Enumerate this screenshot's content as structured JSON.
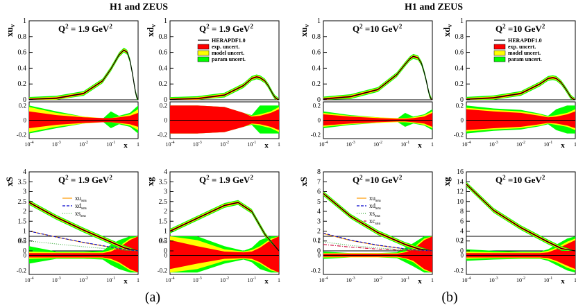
{
  "figure": {
    "group_titles": [
      "H1 and ZEUS",
      "H1 and ZEUS"
    ],
    "panel_labels": [
      "(a)",
      "(b)"
    ]
  },
  "colors": {
    "central": "#000000",
    "exp": "#ff0000",
    "model": "#ffff00",
    "param": "#00ff00",
    "xu_sea": "#ff9900",
    "xd_sea": "#0000cc",
    "xs_sea": "#33aa33",
    "xc_sea": "#cc0033"
  },
  "legend_main": {
    "title": "HERAPDF1.0",
    "items": [
      "exp. uncert.",
      "model uncert.",
      "param uncert."
    ]
  },
  "legend_sea_a": [
    "xu",
    "xd",
    "xs"
  ],
  "legend_sea_b": [
    "xu",
    "xd",
    "xs",
    "xc"
  ],
  "legend_sea_suffix": "sea",
  "ratio_axis": {
    "ylim": [
      -0.25,
      0.25
    ],
    "ticks": [
      "0.2",
      "0",
      "-0.2"
    ]
  },
  "x_axis": {
    "label": "x",
    "range_log10": [
      -4,
      0
    ],
    "tick_labels": [
      "10",
      "10",
      "10",
      "10",
      "1"
    ],
    "tick_exponents": [
      "-4",
      "-3",
      "-2",
      "-1",
      ""
    ]
  },
  "chart_data": [
    {
      "type": "area",
      "title": "Q2 = 1.9 GeV2",
      "q2_label": "Q",
      "q2_sup": "2",
      "q2_value": "= 1.9 GeV",
      "q2_unit_sup": "2",
      "ylabel": "xu",
      "ylabel_sub": "v",
      "ylim": [
        0,
        1
      ],
      "y_ticks": [
        "0",
        "0.2",
        "0.4",
        "0.6",
        "0.8",
        "1"
      ],
      "series": [
        {
          "name": "xu_v",
          "x": [
            0.0001,
            0.001,
            0.01,
            0.05,
            0.1,
            0.2,
            0.3,
            0.4,
            0.5,
            0.6,
            0.7,
            0.8,
            0.9,
            1.0
          ],
          "y": [
            0.005,
            0.02,
            0.08,
            0.24,
            0.39,
            0.57,
            0.63,
            0.6,
            0.5,
            0.36,
            0.22,
            0.1,
            0.03,
            0.0
          ]
        }
      ],
      "ratio_bands": {
        "x_log10": [
          -4,
          -3,
          -2,
          -1.3,
          -1,
          -0.7,
          -0.3,
          0
        ],
        "exp": [
          0.12,
          0.07,
          0.04,
          0.03,
          0.03,
          0.04,
          0.06,
          0.1
        ],
        "model": [
          0.18,
          0.1,
          0.05,
          0.03,
          0.03,
          0.05,
          0.08,
          0.15
        ],
        "param": [
          0.2,
          0.12,
          0.05,
          0.02,
          0.12,
          0.06,
          0.1,
          0.2
        ]
      }
    },
    {
      "type": "area",
      "title": "Q2 = 1.9 GeV2",
      "q2_label": "Q",
      "q2_sup": "2",
      "q2_value": "= 1.9 GeV",
      "q2_unit_sup": "2",
      "ylabel": "xd",
      "ylabel_sub": "v",
      "ylim": [
        0,
        1
      ],
      "y_ticks": [
        "0",
        "0.2",
        "0.4",
        "0.6",
        "0.8",
        "1"
      ],
      "series": [
        {
          "name": "xd_v",
          "x": [
            0.0001,
            0.001,
            0.01,
            0.05,
            0.1,
            0.15,
            0.2,
            0.3,
            0.4,
            0.5,
            0.6,
            0.7,
            0.8,
            0.9,
            1.0
          ],
          "y": [
            0.004,
            0.015,
            0.06,
            0.18,
            0.27,
            0.29,
            0.28,
            0.24,
            0.18,
            0.12,
            0.07,
            0.035,
            0.015,
            0.004,
            0.0
          ]
        }
      ],
      "ratio_bands": {
        "x_log10": [
          -4,
          -3,
          -2,
          -1.3,
          -1,
          -0.7,
          -0.3,
          0
        ],
        "exp": [
          0.2,
          0.2,
          0.18,
          0.1,
          0.05,
          0.06,
          0.1,
          0.15
        ],
        "model": [
          0.2,
          0.2,
          0.18,
          0.1,
          0.06,
          0.08,
          0.12,
          0.18
        ],
        "param": [
          0.2,
          0.2,
          0.18,
          0.1,
          0.07,
          0.2,
          0.2,
          0.2
        ]
      }
    },
    {
      "type": "area",
      "title": "Q2 = 10 GeV2",
      "q2_label": "Q",
      "q2_sup": "2",
      "q2_value": "=10 GeV",
      "q2_unit_sup": "2",
      "ylabel": "xu",
      "ylabel_sub": "v",
      "ylim": [
        0,
        1
      ],
      "y_ticks": [
        "0",
        "0.2",
        "0.4",
        "0.6",
        "0.8",
        "1"
      ],
      "series": [
        {
          "name": "xu_v",
          "x": [
            0.0001,
            0.001,
            0.01,
            0.05,
            0.1,
            0.15,
            0.2,
            0.3,
            0.4,
            0.5,
            0.6,
            0.7,
            0.8,
            0.9,
            1.0
          ],
          "y": [
            0.01,
            0.04,
            0.13,
            0.32,
            0.45,
            0.52,
            0.55,
            0.53,
            0.46,
            0.35,
            0.24,
            0.13,
            0.05,
            0.01,
            0.0
          ]
        }
      ],
      "ratio_bands": {
        "x_log10": [
          -4,
          -3,
          -2,
          -1.3,
          -1,
          -0.7,
          -0.3,
          0
        ],
        "exp": [
          0.08,
          0.05,
          0.03,
          0.02,
          0.02,
          0.03,
          0.05,
          0.1
        ],
        "model": [
          0.1,
          0.06,
          0.04,
          0.03,
          0.03,
          0.04,
          0.07,
          0.12
        ],
        "param": [
          0.12,
          0.07,
          0.04,
          0.02,
          0.1,
          0.05,
          0.08,
          0.15
        ]
      }
    },
    {
      "type": "area",
      "title": "Q2 = 10 GeV2",
      "q2_label": "Q",
      "q2_sup": "2",
      "q2_value": "=10 GeV",
      "q2_unit_sup": "2",
      "ylabel": "xd",
      "ylabel_sub": "v",
      "ylim": [
        0,
        1
      ],
      "y_ticks": [
        "0",
        "0.2",
        "0.4",
        "0.6",
        "0.8",
        "1"
      ],
      "series": [
        {
          "name": "xd_v",
          "x": [
            0.0001,
            0.001,
            0.01,
            0.05,
            0.1,
            0.15,
            0.2,
            0.3,
            0.4,
            0.5,
            0.6,
            0.7,
            0.8,
            0.9,
            1.0
          ],
          "y": [
            0.006,
            0.025,
            0.08,
            0.2,
            0.27,
            0.28,
            0.27,
            0.22,
            0.16,
            0.11,
            0.065,
            0.032,
            0.012,
            0.003,
            0.0
          ]
        }
      ],
      "ratio_bands": {
        "x_log10": [
          -4,
          -3,
          -2,
          -1.3,
          -1,
          -0.7,
          -0.3,
          0
        ],
        "exp": [
          0.15,
          0.12,
          0.1,
          0.06,
          0.04,
          0.05,
          0.08,
          0.12
        ],
        "model": [
          0.17,
          0.14,
          0.12,
          0.08,
          0.05,
          0.07,
          0.1,
          0.15
        ],
        "param": [
          0.2,
          0.16,
          0.14,
          0.09,
          0.06,
          0.15,
          0.2,
          0.2
        ]
      }
    },
    {
      "type": "line",
      "title": "Q2 = 1.9 GeV2",
      "q2_label": "Q",
      "q2_sup": "2",
      "q2_value": "= 1.9 GeV",
      "q2_unit_sup": "2",
      "ylabel": "xS",
      "ylabel_sub": "",
      "ylim": [
        0,
        4
      ],
      "y_ticks": [
        "0",
        "0.5",
        "1",
        "1.5",
        "2",
        "2.5",
        "3",
        "3.5",
        "4"
      ],
      "series": [
        {
          "name": "xS",
          "x_log10": [
            -4,
            -3,
            -2,
            -1,
            -0.5,
            0
          ],
          "y": [
            2.45,
            1.7,
            1.05,
            0.45,
            0.15,
            0.0
          ]
        },
        {
          "name": "xu_sea",
          "x_log10": [
            -4,
            -3,
            -2,
            -1,
            -0.5,
            0
          ],
          "y": [
            1.0,
            0.7,
            0.42,
            0.18,
            0.06,
            0.0
          ]
        },
        {
          "name": "xd_sea",
          "x_log10": [
            -4,
            -3,
            -2,
            -1,
            -0.5,
            0
          ],
          "y": [
            1.0,
            0.7,
            0.43,
            0.19,
            0.07,
            0.0
          ]
        },
        {
          "name": "xs_sea",
          "x_log10": [
            -4,
            -3,
            -2,
            -1,
            -0.5,
            0
          ],
          "y": [
            0.5,
            0.35,
            0.21,
            0.09,
            0.03,
            0.0
          ]
        }
      ],
      "ratio_bands": {
        "x_log10": [
          -4,
          -3,
          -2,
          -1.3,
          -1,
          -0.7,
          -0.3,
          0
        ],
        "exp": [
          0.03,
          0.03,
          0.03,
          0.03,
          0.05,
          0.1,
          0.2,
          0.25
        ],
        "model": [
          0.05,
          0.04,
          0.04,
          0.04,
          0.07,
          0.12,
          0.22,
          0.25
        ],
        "param": [
          0.12,
          0.05,
          0.05,
          0.06,
          0.14,
          0.2,
          0.25,
          0.25
        ]
      }
    },
    {
      "type": "area",
      "title": "Q2 = 1.9 GeV2",
      "q2_label": "Q",
      "q2_sup": "2",
      "q2_value": "= 1.9 GeV",
      "q2_unit_sup": "2",
      "ylabel": "xg",
      "ylabel_sub": "",
      "ylim": [
        0,
        4
      ],
      "y_ticks": [
        "0",
        "0.5",
        "1",
        "1.5",
        "2",
        "2.5",
        "3",
        "3.5",
        "4"
      ],
      "series": [
        {
          "name": "xg",
          "x_log10": [
            -4,
            -3,
            -2,
            -1.5,
            -1,
            -0.5,
            0
          ],
          "y": [
            1.0,
            1.65,
            2.3,
            2.45,
            2.0,
            0.8,
            0.0
          ]
        }
      ],
      "ratio_bands": {
        "x_log10": [
          -4,
          -3,
          -2,
          -1.3,
          -1,
          -0.7,
          -0.3,
          0
        ],
        "exp": [
          0.2,
          0.12,
          0.05,
          0.04,
          0.05,
          0.1,
          0.2,
          0.25
        ],
        "model": [
          0.25,
          0.2,
          0.08,
          0.05,
          0.07,
          0.12,
          0.22,
          0.25
        ],
        "param": [
          0.25,
          0.25,
          0.12,
          0.06,
          0.1,
          0.2,
          0.25,
          0.25
        ]
      }
    },
    {
      "type": "line",
      "title": "Q2 = 10 GeV2",
      "q2_label": "Q",
      "q2_sup": "2",
      "q2_value": "=10 GeV",
      "q2_unit_sup": "2",
      "ylabel": "xS",
      "ylabel_sub": "",
      "ylim": [
        0,
        8
      ],
      "y_ticks": [
        "0",
        "1",
        "2",
        "3",
        "4",
        "5",
        "6",
        "7",
        "8"
      ],
      "series": [
        {
          "name": "xS",
          "x_log10": [
            -4,
            -3,
            -2,
            -1,
            -0.5,
            0
          ],
          "y": [
            5.8,
            3.5,
            1.85,
            0.65,
            0.2,
            0.0
          ]
        },
        {
          "name": "xu_sea",
          "x_log10": [
            -4,
            -3,
            -2,
            -1,
            -0.5,
            0
          ],
          "y": [
            1.75,
            1.05,
            0.56,
            0.2,
            0.06,
            0.0
          ]
        },
        {
          "name": "xd_sea",
          "x_log10": [
            -4,
            -3,
            -2,
            -1,
            -0.5,
            0
          ],
          "y": [
            1.8,
            1.08,
            0.58,
            0.21,
            0.07,
            0.0
          ]
        },
        {
          "name": "xs_sea",
          "x_log10": [
            -4,
            -3,
            -2,
            -1,
            -0.5,
            0
          ],
          "y": [
            0.9,
            0.55,
            0.29,
            0.1,
            0.03,
            0.0
          ]
        },
        {
          "name": "xc_sea",
          "x_log10": [
            -4,
            -3,
            -2,
            -1,
            -0.5,
            0
          ],
          "y": [
            0.65,
            0.38,
            0.18,
            0.05,
            0.01,
            0.0
          ]
        }
      ],
      "ratio_bands": {
        "x_log10": [
          -4,
          -3,
          -2,
          -1.3,
          -1,
          -0.7,
          -0.3,
          0
        ],
        "exp": [
          0.02,
          0.02,
          0.02,
          0.02,
          0.04,
          0.08,
          0.2,
          0.25
        ],
        "model": [
          0.03,
          0.03,
          0.03,
          0.03,
          0.05,
          0.1,
          0.22,
          0.25
        ],
        "param": [
          0.05,
          0.03,
          0.03,
          0.04,
          0.1,
          0.16,
          0.25,
          0.25
        ]
      }
    },
    {
      "type": "area",
      "title": "Q2 = 10 GeV2",
      "q2_label": "Q",
      "q2_sup": "2",
      "q2_value": "=10 GeV",
      "q2_unit_sup": "2",
      "ylabel": "xg",
      "ylabel_sub": "",
      "ylim": [
        0,
        16
      ],
      "y_ticks": [
        "0",
        "2",
        "4",
        "6",
        "8",
        "10",
        "12",
        "14",
        "16"
      ],
      "series": [
        {
          "name": "xg",
          "x_log10": [
            -4,
            -3,
            -2,
            -1,
            -0.5,
            0
          ],
          "y": [
            13.5,
            8.2,
            4.7,
            1.8,
            0.45,
            0.0
          ]
        }
      ],
      "ratio_bands": {
        "x_log10": [
          -4,
          -3,
          -2,
          -1.3,
          -1,
          -0.7,
          -0.3,
          0
        ],
        "exp": [
          0.03,
          0.03,
          0.03,
          0.03,
          0.04,
          0.08,
          0.15,
          0.2
        ],
        "model": [
          0.05,
          0.04,
          0.04,
          0.04,
          0.06,
          0.1,
          0.18,
          0.22
        ],
        "param": [
          0.08,
          0.06,
          0.05,
          0.05,
          0.08,
          0.14,
          0.22,
          0.25
        ]
      }
    }
  ]
}
